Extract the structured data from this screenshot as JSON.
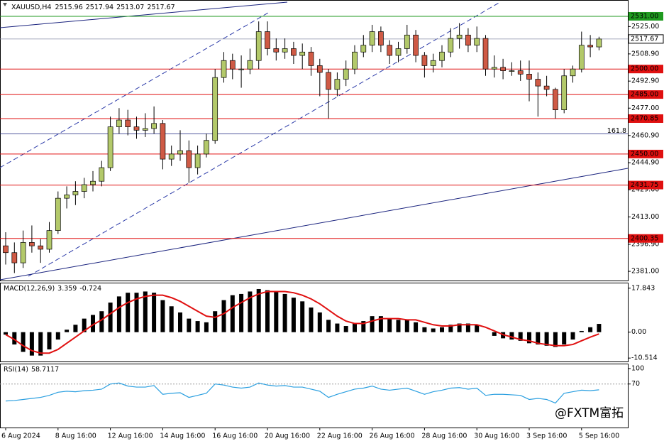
{
  "chart_data": [
    {
      "type": "candlestick",
      "title": "XAUUSD,H4",
      "header_ohlc": [
        2515.96,
        2517.94,
        2513.07,
        2517.67
      ],
      "categories": [
        "6 Aug 2024",
        null,
        null,
        null,
        null,
        null,
        "8 Aug 16:00",
        null,
        null,
        null,
        null,
        null,
        "12 Aug 16:00",
        null,
        null,
        null,
        null,
        null,
        "14 Aug 16:00",
        null,
        null,
        null,
        null,
        null,
        "16 Aug 16:00",
        null,
        null,
        null,
        null,
        null,
        "20 Aug 16:00",
        null,
        null,
        null,
        null,
        null,
        "22 Aug 16:00",
        null,
        null,
        null,
        null,
        null,
        "26 Aug 16:00",
        null,
        null,
        null,
        null,
        null,
        "28 Aug 16:00",
        null,
        null,
        null,
        null,
        null,
        "30 Aug 16:00",
        null,
        null,
        null,
        null,
        null,
        "3 Sep 16:00",
        null,
        null,
        null,
        null,
        null,
        "5 Sep 16:00",
        null,
        null
      ],
      "open": [
        2396,
        2392,
        2386,
        2398,
        2396,
        2394,
        2405,
        2424,
        2426,
        2428,
        2432,
        2434,
        2442,
        2466,
        2470,
        2466,
        2464,
        2465,
        2468,
        2447,
        2450,
        2452,
        2442,
        2450,
        2458,
        2495,
        2505,
        2500,
        2500,
        2505,
        2522,
        2512,
        2510,
        2512,
        2508,
        2510,
        2502,
        2498,
        2488,
        2494,
        2500,
        2510,
        2514,
        2522,
        2514,
        2508,
        2512,
        2520,
        2508,
        2502,
        2505,
        2510,
        2518,
        2520,
        2514,
        2518,
        2500,
        2501,
        2499,
        2499,
        2497,
        2494,
        2490,
        2488,
        2476,
        2496,
        2500,
        2514,
        2513
      ],
      "high": [
        2404,
        2398,
        2405,
        2408,
        2400,
        2410,
        2428,
        2431,
        2434,
        2436,
        2440,
        2446,
        2472,
        2477,
        2476,
        2472,
        2474,
        2478,
        2470,
        2455,
        2464,
        2458,
        2455,
        2462,
        2500,
        2510,
        2509,
        2508,
        2512,
        2528,
        2528,
        2518,
        2518,
        2516,
        2515,
        2513,
        2506,
        2500,
        2498,
        2505,
        2514,
        2520,
        2526,
        2525,
        2517,
        2516,
        2526,
        2523,
        2510,
        2509,
        2514,
        2524,
        2527,
        2524,
        2525,
        2520,
        2508,
        2506,
        2504,
        2505,
        2505,
        2498,
        2496,
        2489,
        2500,
        2502,
        2522,
        2520,
        2519
      ],
      "low": [
        2385,
        2380,
        2383,
        2392,
        2386,
        2392,
        2403,
        2418,
        2420,
        2424,
        2428,
        2431,
        2440,
        2462,
        2461,
        2459,
        2460,
        2462,
        2441,
        2443,
        2446,
        2433,
        2438,
        2448,
        2456,
        2492,
        2494,
        2489,
        2497,
        2500,
        2508,
        2505,
        2506,
        2503,
        2500,
        2496,
        2484,
        2471,
        2484,
        2490,
        2497,
        2507,
        2510,
        2510,
        2503,
        2504,
        2509,
        2504,
        2495,
        2498,
        2501,
        2507,
        2512,
        2510,
        2510,
        2496,
        2495,
        2494,
        2496,
        2493,
        2481,
        2472,
        2484,
        2471,
        2474,
        2492,
        2498,
        2507,
        2511
      ],
      "close": [
        2392,
        2386,
        2398,
        2396,
        2394,
        2405,
        2424,
        2426,
        2428,
        2432,
        2434,
        2442,
        2466,
        2470,
        2466,
        2464,
        2465,
        2468,
        2447,
        2450,
        2452,
        2442,
        2450,
        2458,
        2495,
        2505,
        2500,
        2500,
        2505,
        2522,
        2512,
        2510,
        2512,
        2508,
        2510,
        2502,
        2498,
        2488,
        2494,
        2500,
        2510,
        2514,
        2522,
        2514,
        2508,
        2512,
        2520,
        2508,
        2502,
        2505,
        2510,
        2518,
        2520,
        2514,
        2518,
        2500,
        2501,
        2499,
        2499,
        2497,
        2494,
        2490,
        2488,
        2476,
        2496,
        2500,
        2514,
        2513,
        2517.67
      ],
      "up_color": "#b3c96a",
      "down_color": "#cf5a45",
      "ylim": [
        2375.6,
        2540.6
      ],
      "yticks": [
        {
          "value": 2525,
          "label": "2525.00"
        },
        {
          "value": 2508.9,
          "label": "2508.90"
        },
        {
          "value": 2492.9,
          "label": "2492.90"
        },
        {
          "value": 2477,
          "label": "2477.00"
        },
        {
          "value": 2460.9,
          "label": "2460.90"
        },
        {
          "value": 2444.9,
          "label": "2444.90"
        },
        {
          "value": 2429,
          "label": "2429.00"
        },
        {
          "value": 2413,
          "label": "2413.00"
        },
        {
          "value": 2396.9,
          "label": "2396.90"
        },
        {
          "value": 2381,
          "label": "2381.00"
        }
      ],
      "levels": [
        {
          "value": 2531,
          "label": "2531.00",
          "color": "#1f9a1f"
        },
        {
          "value": 2500,
          "label": "2500.00",
          "color": "#e01010"
        },
        {
          "value": 2485,
          "label": "2485.00",
          "color": "#e01010"
        },
        {
          "value": 2470.85,
          "label": "2470.85",
          "color": "#e01010"
        },
        {
          "value": 2450,
          "label": "2450.00",
          "color": "#e01010"
        },
        {
          "value": 2431.75,
          "label": "2431.75",
          "color": "#e01010"
        },
        {
          "value": 2400.35,
          "label": "2400.35",
          "color": "#e01010"
        }
      ],
      "fib": {
        "value": 2461.9,
        "label": "161.8",
        "color": "#1a237e"
      }
    },
    {
      "type": "macd",
      "title": "MACD(12,26,9)",
      "histogram": [
        -1,
        -5,
        -8,
        -9.5,
        -9.5,
        -7,
        -3,
        1,
        3,
        5.5,
        7,
        8.5,
        12,
        14.5,
        16,
        16,
        16.5,
        16,
        13,
        10.5,
        8,
        5.5,
        4.5,
        4,
        8.5,
        13,
        15,
        15.5,
        16.5,
        17.5,
        17,
        16.5,
        15.5,
        14,
        12.5,
        10,
        8,
        5,
        3.5,
        2.5,
        3.5,
        4.5,
        6.5,
        6.5,
        5.5,
        5,
        5,
        4,
        2,
        1.5,
        2,
        3,
        3.5,
        3.5,
        3,
        0,
        -1.5,
        -2.5,
        -3,
        -3.5,
        -4.5,
        -5,
        -5.5,
        -6,
        -5,
        -3,
        0.5,
        2,
        3.359
      ],
      "signal": [
        -1,
        -3,
        -5.5,
        -7.5,
        -8.5,
        -8.5,
        -7,
        -4.5,
        -2,
        0.5,
        3,
        5,
        7.5,
        10,
        12,
        13.5,
        14.5,
        15,
        15,
        14,
        12.5,
        10.5,
        8.5,
        6.5,
        6,
        7.5,
        10,
        12,
        14,
        15.5,
        16.5,
        16.5,
        16.5,
        16,
        15,
        13.5,
        11.5,
        9,
        6.5,
        4.5,
        3.5,
        3.5,
        4.5,
        5.5,
        5.5,
        5.5,
        5,
        5,
        4,
        3,
        2.5,
        2.5,
        3,
        3,
        3,
        2,
        0.5,
        -1,
        -2,
        -3,
        -3.5,
        -4.5,
        -5,
        -5.5,
        -5.5,
        -5,
        -3.5,
        -2,
        -0.724
      ],
      "histogram_color": "#000000",
      "signal_color": "#e01010",
      "ylim": [
        -11.9,
        19.8
      ],
      "yticks": [
        17.843,
        {
          "value": 0,
          "label": "0.00"
        },
        -10.514
      ]
    },
    {
      "type": "line",
      "title": "RSI(14)",
      "values": [
        37,
        38,
        40,
        42,
        44,
        48,
        54,
        56,
        55,
        57,
        58,
        60,
        70,
        72,
        66,
        64,
        64,
        67,
        50,
        52,
        53,
        44,
        48,
        52,
        70,
        68,
        64,
        62,
        64,
        72,
        68,
        66,
        67,
        64,
        64,
        60,
        56,
        44,
        50,
        55,
        60,
        62,
        66,
        60,
        58,
        60,
        62,
        56,
        50,
        55,
        58,
        62,
        63,
        60,
        62,
        48,
        50,
        50,
        49,
        48,
        40,
        42,
        40,
        33,
        52,
        55,
        58,
        57,
        58.7117
      ],
      "color": "#2a9fe0",
      "ylim": [
        -14.5,
        108.2
      ],
      "yticks": [
        100,
        70
      ],
      "levels": [
        70
      ]
    }
  ],
  "watermark": "@FXTM富拓"
}
